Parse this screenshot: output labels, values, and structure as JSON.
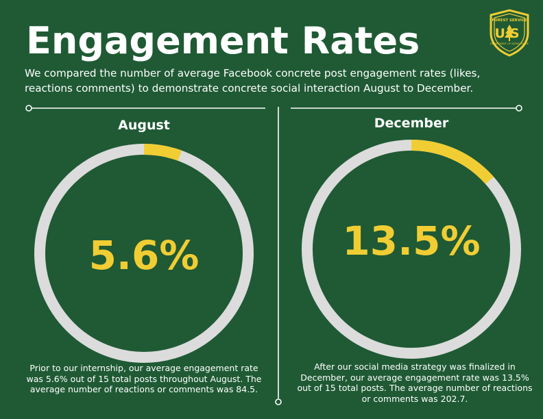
{
  "header": {
    "title": "Engagement Rates",
    "subtitle": "We compared the number of average Facebook concrete post engagement rates (likes, reactions comments) to demonstrate concrete social interaction August to December."
  },
  "logo": {
    "icon": "usfs-shield-icon",
    "top_text": "FOREST SERVICE",
    "letters": "US",
    "bottom_text": "DEPARTMENT OF AGRICULTURE"
  },
  "colors": {
    "background": "#1f5a34",
    "track": "#dcdcdc",
    "accent": "#f1cd34",
    "text": "#ffffff"
  },
  "chart_data": [
    {
      "type": "pie",
      "label": "August",
      "value_label": "5.6%",
      "values": [
        5.6,
        94.4
      ],
      "caption": "Prior to our internship, our average engagement rate was 5.6% out of 15 total posts throughout August. The average number of reactions or comments was 84.5."
    },
    {
      "type": "pie",
      "label": "December",
      "value_label": "13.5%",
      "values": [
        13.5,
        86.5
      ],
      "caption": "After our social media strategy was finalized in December, our average engagement rate was 13.5% out of 15 total posts. The average number of reactions or comments was 202.7."
    }
  ]
}
